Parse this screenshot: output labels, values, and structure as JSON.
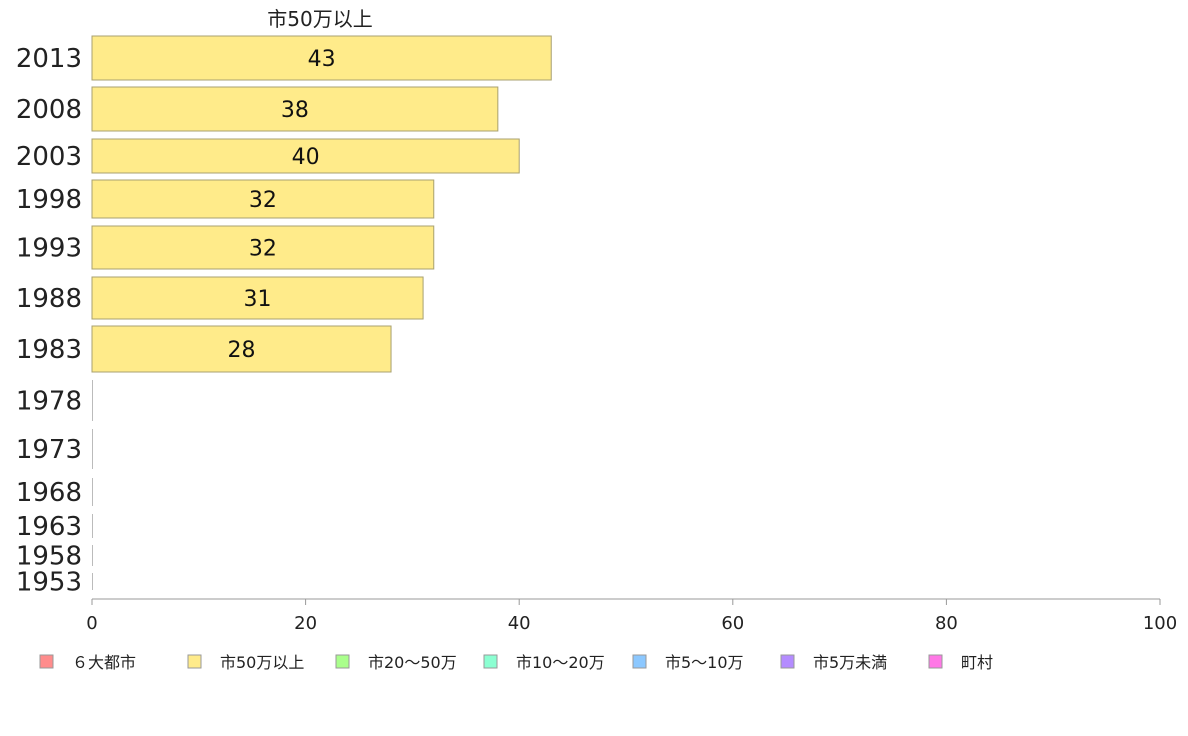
{
  "chart_data": {
    "type": "bar",
    "orientation": "horizontal",
    "series_header": "市50万以上",
    "categories": [
      "2013",
      "2008",
      "2003",
      "1998",
      "1993",
      "1988",
      "1983",
      "1978",
      "1973",
      "1968",
      "1963",
      "1958",
      "1953"
    ],
    "series": [
      {
        "name": "市50万以上",
        "color": "#ffeb8a",
        "values": [
          43,
          38,
          40,
          32,
          32,
          31,
          28,
          null,
          null,
          null,
          null,
          null,
          null
        ],
        "labels": [
          "43",
          "38",
          "40",
          "32",
          "32",
          "31",
          "28",
          "",
          "",
          "",
          "",
          "",
          ""
        ]
      }
    ],
    "xlim": [
      0,
      100
    ],
    "xticks": [
      "0",
      "20",
      "40",
      "60",
      "80",
      "100"
    ],
    "grid": false,
    "legend_position": "bottom",
    "legend": [
      {
        "label": "６大都市",
        "color": "#ff8c8c"
      },
      {
        "label": "市50万以上",
        "color": "#ffeb8a"
      },
      {
        "label": "市20〜50万",
        "color": "#aaff8c"
      },
      {
        "label": "市10〜20万",
        "color": "#8cffd2"
      },
      {
        "label": "市5〜10万",
        "color": "#8cc8ff"
      },
      {
        "label": "市5万未満",
        "color": "#b48cff"
      },
      {
        "label": "町村",
        "color": "#ff78e6"
      }
    ]
  }
}
